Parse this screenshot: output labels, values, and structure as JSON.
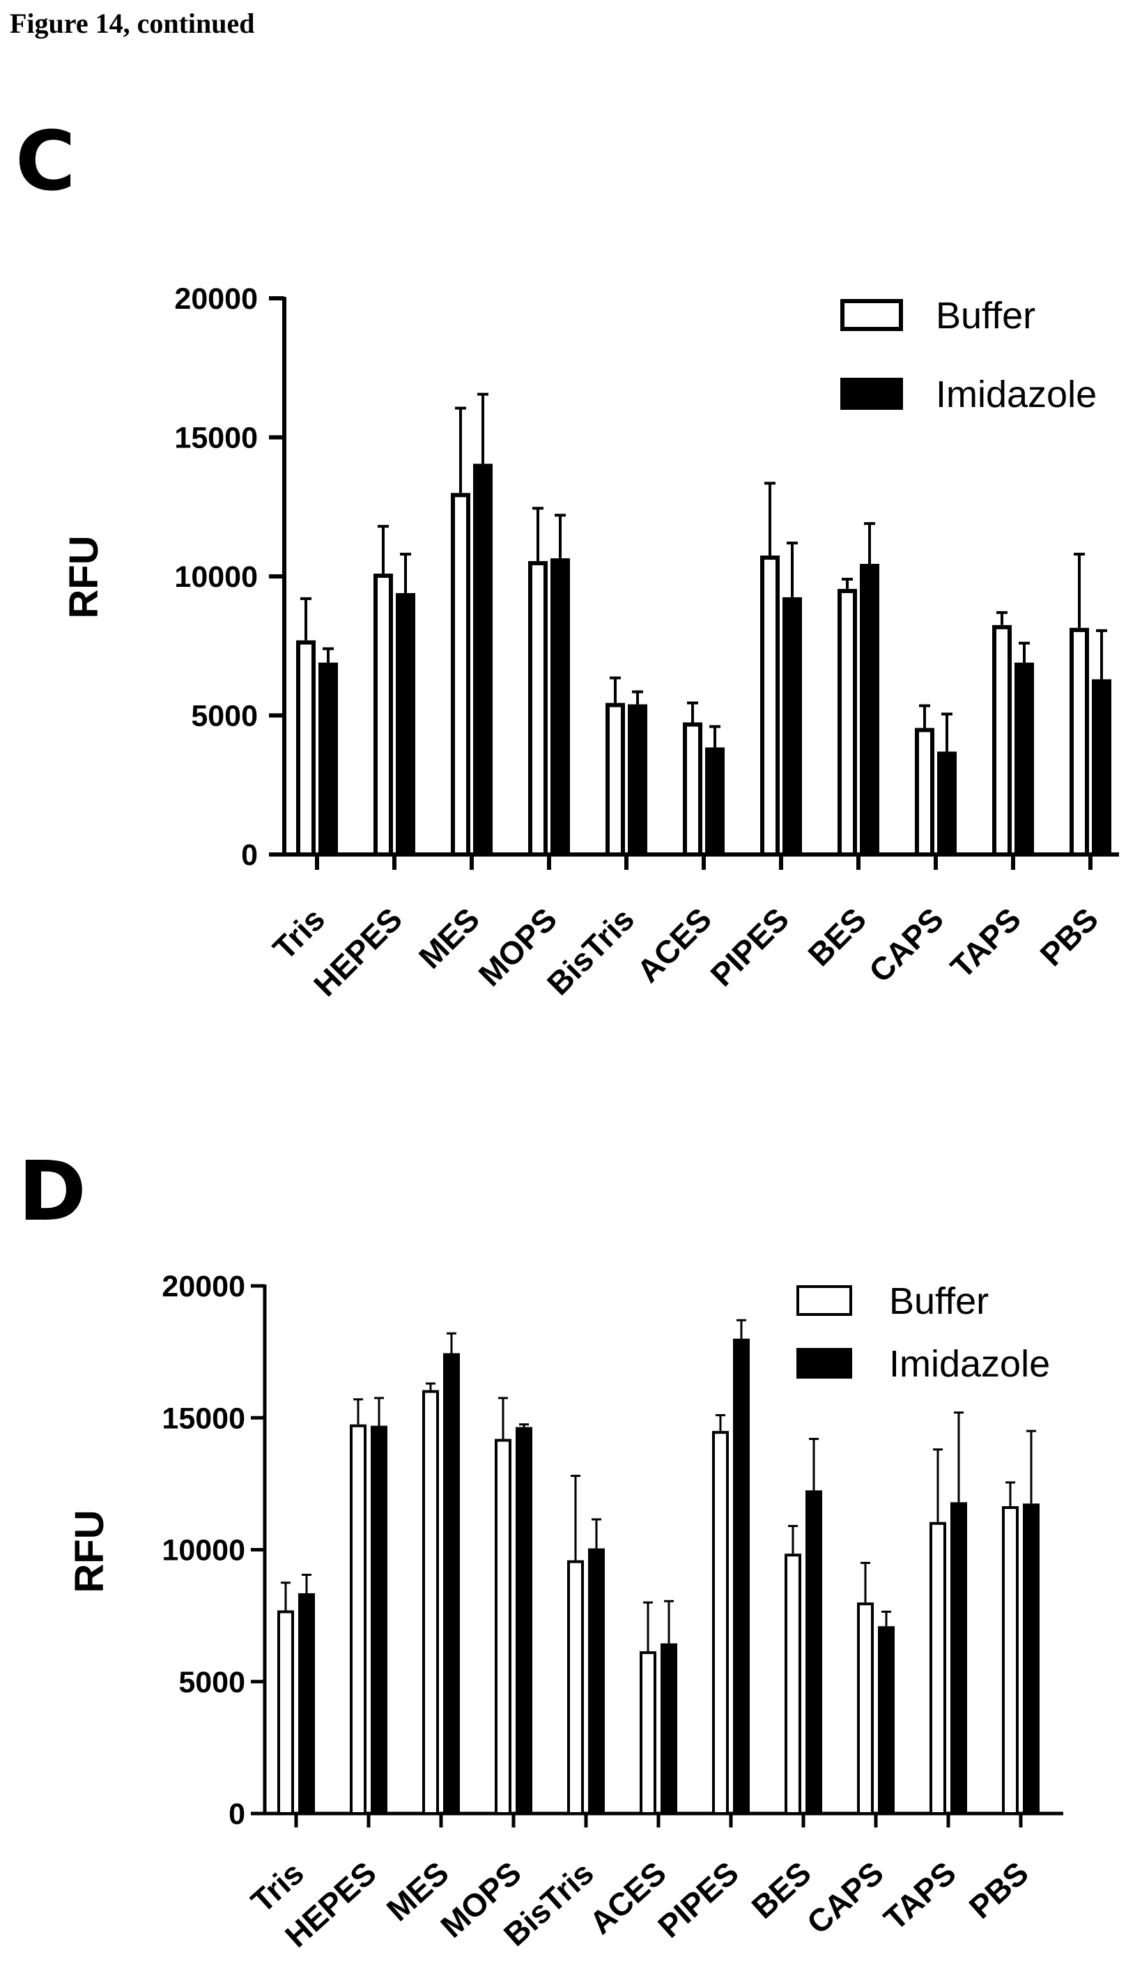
{
  "page": {
    "header": "Figure 14, continued"
  },
  "chart_data": [
    {
      "panel": "C",
      "type": "bar",
      "ylabel": "RFU",
      "ylim": [
        0,
        20000
      ],
      "yticks": [
        0,
        5000,
        10000,
        15000,
        20000
      ],
      "legend_position": "top-right",
      "categories": [
        "Tris",
        "HEPES",
        "MES",
        "MOPS",
        "BisTris",
        "ACES",
        "PIPES",
        "BES",
        "CAPS",
        "TAPS",
        "PBS"
      ],
      "series": [
        {
          "name": "Buffer",
          "fill": "#ffffff",
          "stroke": "#000000",
          "values": [
            7700,
            10100,
            13000,
            10550,
            5450,
            4750,
            10750,
            9550,
            4550,
            8250,
            8150
          ],
          "errors": [
            1500,
            1700,
            3050,
            1900,
            900,
            700,
            2600,
            350,
            800,
            450,
            2650
          ]
        },
        {
          "name": "Imidazole",
          "fill": "#000000",
          "stroke": "#000000",
          "values": [
            6900,
            9400,
            14050,
            10650,
            5400,
            3850,
            9250,
            10450,
            3700,
            6900,
            6300
          ],
          "errors": [
            500,
            1400,
            2500,
            1550,
            450,
            750,
            1950,
            1450,
            1350,
            700,
            1750
          ]
        }
      ]
    },
    {
      "panel": "D",
      "type": "bar",
      "ylabel": "RFU",
      "ylim": [
        0,
        20000
      ],
      "yticks": [
        0,
        5000,
        10000,
        15000,
        20000
      ],
      "legend_position": "top-right",
      "categories": [
        "Tris",
        "HEPES",
        "MES",
        "MOPS",
        "BisTris",
        "ACES",
        "PIPES",
        "BES",
        "CAPS",
        "TAPS",
        "PBS"
      ],
      "series": [
        {
          "name": "Buffer",
          "fill": "#ffffff",
          "stroke": "#000000",
          "values": [
            7700,
            14750,
            16050,
            14200,
            9600,
            6150,
            14500,
            9850,
            8000,
            11050,
            11650
          ],
          "errors": [
            1050,
            950,
            250,
            1550,
            3200,
            1850,
            600,
            1050,
            1500,
            2750,
            900
          ]
        },
        {
          "name": "Imidazole",
          "fill": "#000000",
          "stroke": "#000000",
          "values": [
            8350,
            14700,
            17450,
            14650,
            10050,
            6450,
            18000,
            12250,
            7100,
            11800,
            11750
          ],
          "errors": [
            700,
            1050,
            750,
            100,
            1100,
            1600,
            700,
            1950,
            550,
            3400,
            2750
          ]
        }
      ]
    }
  ]
}
